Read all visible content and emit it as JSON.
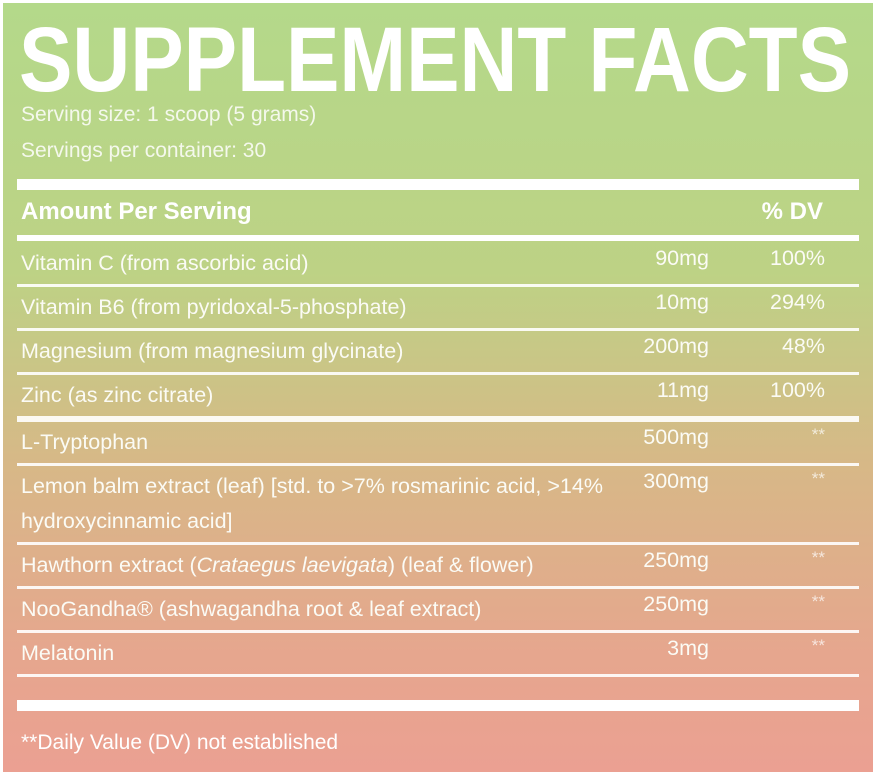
{
  "header": {
    "title": "SUPPLEMENT FACTS",
    "serving_size": "Serving size: 1 scoop (5 grams)",
    "servings_per_container": "Servings per container: 30"
  },
  "table": {
    "columns": [
      "Amount Per Serving",
      "% DV"
    ],
    "rows": [
      {
        "name": "Vitamin C (from ascorbic acid)",
        "amount": "90mg",
        "dv": "100%"
      },
      {
        "name": "Vitamin B6 (from pyridoxal-5-phosphate)",
        "amount": "10mg",
        "dv": "294%"
      },
      {
        "name": "Magnesium (from magnesium glycinate)",
        "amount": "200mg",
        "dv": "48%"
      },
      {
        "name": "Zinc (as zinc citrate)",
        "amount": "11mg",
        "dv": "100%"
      },
      {
        "name": "L-Tryptophan",
        "amount": "500mg",
        "dv": "**"
      },
      {
        "name": "Lemon balm extract (leaf) [std. to >7% rosmarinic acid, >14% hydroxycinnamic acid]",
        "amount": "300mg",
        "dv": "**"
      },
      {
        "name": [
          "Hawthorn extract (",
          "Crataegus laevigata",
          ") (leaf & flower)"
        ],
        "italic_part": 1,
        "amount": "250mg",
        "dv": "**"
      },
      {
        "name": "NooGandha® (ashwagandha root & leaf extract)",
        "amount": "250mg",
        "dv": "**"
      },
      {
        "name": "Melatonin",
        "amount": "3mg",
        "dv": "**"
      }
    ]
  },
  "footnote": "**Daily Value (DV) not established"
}
